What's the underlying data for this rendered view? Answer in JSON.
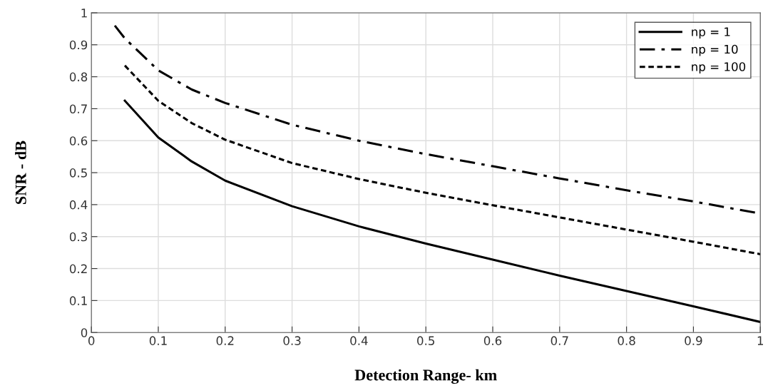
{
  "chart_data": {
    "type": "line",
    "xlabel": "Detection Range- km",
    "ylabel": "SNR - dB",
    "xlim": [
      0,
      1
    ],
    "ylim": [
      0,
      1
    ],
    "xticks": [
      0,
      0.1,
      0.2,
      0.3,
      0.4,
      0.5,
      0.6,
      0.7,
      0.8,
      0.9,
      1
    ],
    "yticks": [
      0,
      0.1,
      0.2,
      0.3,
      0.4,
      0.5,
      0.6,
      0.7,
      0.8,
      0.9,
      1
    ],
    "grid": true,
    "legend": "top right",
    "marker": "none",
    "series": [
      {
        "name": "np = 1",
        "color": "#000000",
        "line_style": "solid",
        "x": [
          0.05,
          0.1,
          0.15,
          0.2,
          0.3,
          0.4,
          0.5,
          0.6,
          0.7,
          0.8,
          0.9,
          1.0
        ],
        "values": [
          0.725,
          0.61,
          0.535,
          0.475,
          0.395,
          0.332,
          0.278,
          0.228,
          0.178,
          0.13,
          0.082,
          0.033
        ]
      },
      {
        "name": "np = 10",
        "color": "#000000",
        "line_style": "dashdot",
        "x": [
          0.035,
          0.05,
          0.1,
          0.15,
          0.2,
          0.3,
          0.4,
          0.5,
          0.6,
          0.7,
          0.8,
          0.9,
          1.0
        ],
        "values": [
          0.96,
          0.92,
          0.82,
          0.76,
          0.718,
          0.65,
          0.6,
          0.558,
          0.52,
          0.482,
          0.445,
          0.41,
          0.372
        ]
      },
      {
        "name": "np = 100",
        "color": "#000000",
        "line_style": "dotted",
        "x": [
          0.05,
          0.1,
          0.15,
          0.2,
          0.3,
          0.4,
          0.5,
          0.6,
          0.7,
          0.8,
          0.9,
          1.0
        ],
        "values": [
          0.835,
          0.725,
          0.655,
          0.603,
          0.53,
          0.48,
          0.437,
          0.398,
          0.36,
          0.322,
          0.284,
          0.245
        ]
      }
    ]
  }
}
